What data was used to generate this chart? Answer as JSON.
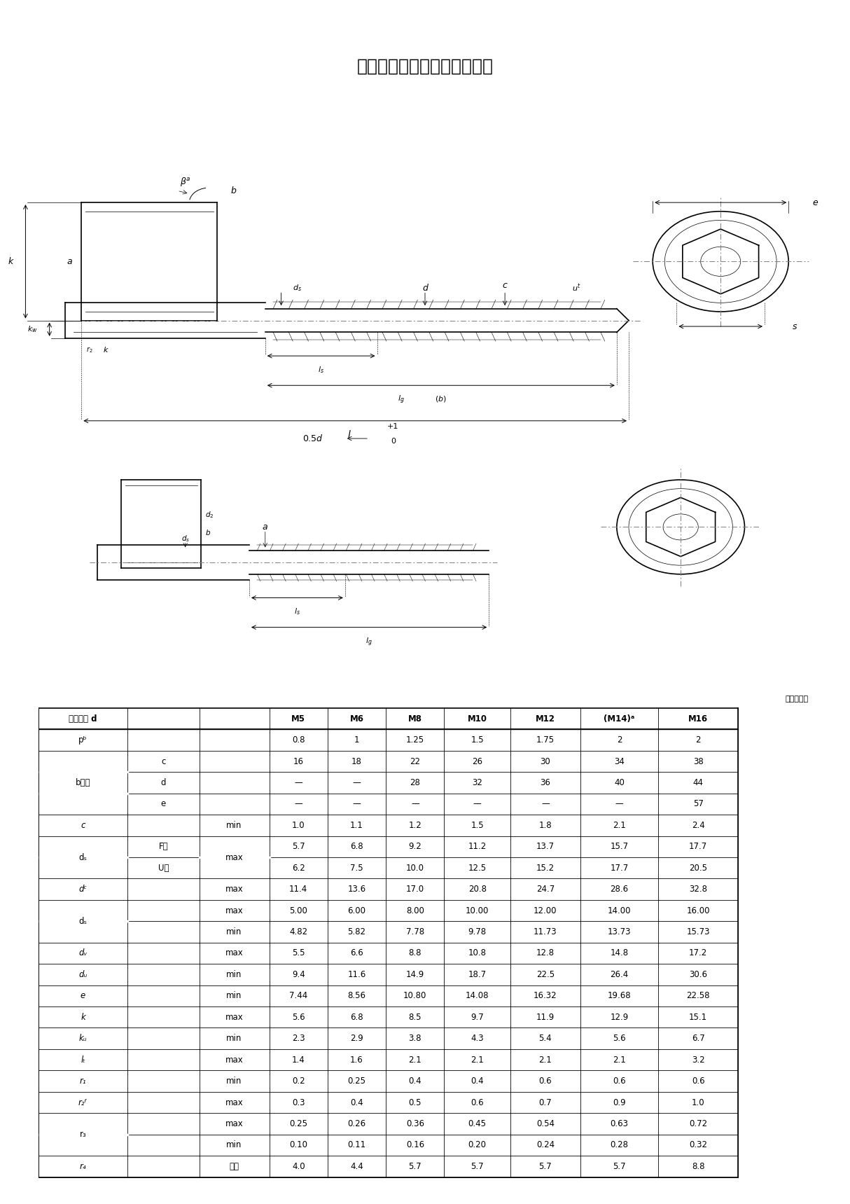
{
  "title": "六角头法兰面螺栓规格尺寸表",
  "unit_note": "单位为毫米",
  "size_columns": [
    "M5",
    "M6",
    "M8",
    "M10",
    "M12",
    "(M14)ᵃ",
    "M16"
  ],
  "table_data": [
    [
      "螺纹规格 d",
      "",
      "",
      [
        "M5",
        "M6",
        "M8",
        "M10",
        "M12",
        "(M14)ᵃ",
        "M16"
      ]
    ],
    [
      "pᵇ",
      "",
      "",
      [
        "0.8",
        "1",
        "1.25",
        "1.5",
        "1.75",
        "2",
        "2"
      ]
    ],
    [
      "b参考",
      "c",
      "",
      [
        "16",
        "18",
        "22",
        "26",
        "30",
        "34",
        "38"
      ]
    ],
    [
      "",
      "d",
      "",
      [
        "—",
        "—",
        "28",
        "32",
        "36",
        "40",
        "44"
      ]
    ],
    [
      "",
      "e",
      "",
      [
        "—",
        "—",
        "—",
        "—",
        "—",
        "—",
        "57"
      ]
    ],
    [
      "c",
      "",
      "min",
      [
        "1.0",
        "1.1",
        "1.2",
        "1.5",
        "1.8",
        "2.1",
        "2.4"
      ]
    ],
    [
      "dₛ",
      "F型",
      "max",
      [
        "5.7",
        "6.8",
        "9.2",
        "11.2",
        "13.7",
        "15.7",
        "17.7"
      ]
    ],
    [
      "",
      "U型",
      "",
      [
        "6.2",
        "7.5",
        "10.0",
        "12.5",
        "15.2",
        "17.7",
        "20.5"
      ]
    ],
    [
      "dᶜ",
      "",
      "max",
      [
        "11.4",
        "13.6",
        "17.0",
        "20.8",
        "24.7",
        "28.6",
        "32.8"
      ]
    ],
    [
      "dₛ",
      "",
      "max",
      [
        "5.00",
        "6.00",
        "8.00",
        "10.00",
        "12.00",
        "14.00",
        "16.00"
      ]
    ],
    [
      "",
      "",
      "min",
      [
        "4.82",
        "5.82",
        "7.78",
        "9.78",
        "11.73",
        "13.73",
        "15.73"
      ]
    ],
    [
      "dᵥ",
      "",
      "max",
      [
        "5.5",
        "6.6",
        "8.8",
        "10.8",
        "12.8",
        "14.8",
        "17.2"
      ]
    ],
    [
      "dᵤ",
      "",
      "min",
      [
        "9.4",
        "11.6",
        "14.9",
        "18.7",
        "22.5",
        "26.4",
        "30.6"
      ]
    ],
    [
      "e",
      "",
      "min",
      [
        "7.44",
        "8.56",
        "10.80",
        "14.08",
        "16.32",
        "19.68",
        "22.58"
      ]
    ],
    [
      "k",
      "",
      "max",
      [
        "5.6",
        "6.8",
        "8.5",
        "9.7",
        "11.9",
        "12.9",
        "15.1"
      ]
    ],
    [
      "kᵤ",
      "",
      "min",
      [
        "2.3",
        "2.9",
        "3.8",
        "4.3",
        "5.4",
        "5.6",
        "6.7"
      ]
    ],
    [
      "lₜ",
      "",
      "max",
      [
        "1.4",
        "1.6",
        "2.1",
        "2.1",
        "2.1",
        "2.1",
        "3.2"
      ]
    ],
    [
      "r₁",
      "",
      "min",
      [
        "0.2",
        "0.25",
        "0.4",
        "0.4",
        "0.6",
        "0.6",
        "0.6"
      ]
    ],
    [
      "r₂ᶠ",
      "",
      "max",
      [
        "0.3",
        "0.4",
        "0.5",
        "0.6",
        "0.7",
        "0.9",
        "1.0"
      ]
    ],
    [
      "r₃",
      "",
      "max",
      [
        "0.25",
        "0.26",
        "0.36",
        "0.45",
        "0.54",
        "0.63",
        "0.72"
      ]
    ],
    [
      "",
      "",
      "min",
      [
        "0.10",
        "0.11",
        "0.16",
        "0.20",
        "0.24",
        "0.28",
        "0.32"
      ]
    ],
    [
      "r₄",
      "",
      "参考",
      [
        "4.0",
        "4.4",
        "5.7",
        "5.7",
        "5.7",
        "5.7",
        "8.8"
      ]
    ]
  ],
  "multi_row_labels": {
    "2": [
      "b参考",
      3
    ],
    "6": [
      "dₛ",
      2
    ],
    "9": [
      "dₛ",
      2
    ],
    "19": [
      "r₃",
      2
    ]
  },
  "background_color": "#ffffff",
  "title_fontsize": 18,
  "table_fontsize": 8.5
}
